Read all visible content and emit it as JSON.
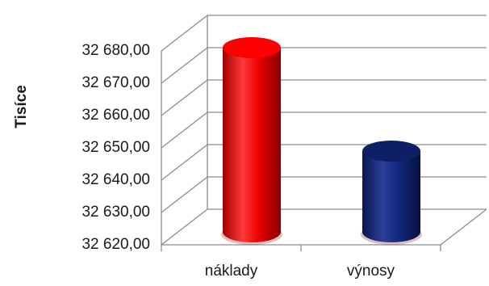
{
  "chart_data": {
    "type": "bar",
    "style": "3d-cylinder",
    "categories": [
      "náklady",
      "výnosy"
    ],
    "values": [
      32677,
      32645
    ],
    "ylabel": "Tisíce",
    "xlabel": "",
    "ylim": [
      32620,
      32680
    ],
    "yticks": [
      32620,
      32630,
      32640,
      32650,
      32660,
      32670,
      32680
    ],
    "ytick_labels": [
      "32 620,00",
      "32 630,00",
      "32 640,00",
      "32 650,00",
      "32 660,00",
      "32 670,00",
      "32 680,00"
    ],
    "grid": true,
    "legend": "none",
    "colors": [
      "#ff0000",
      "#0f1f66"
    ]
  }
}
